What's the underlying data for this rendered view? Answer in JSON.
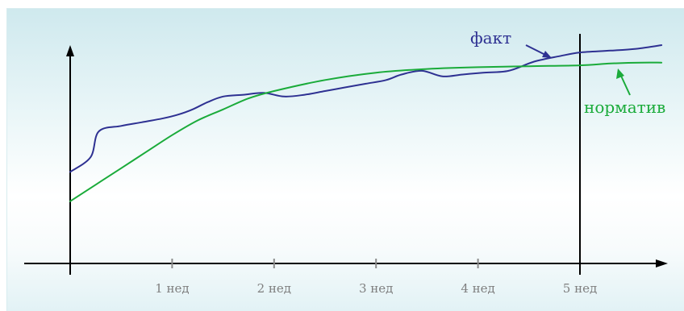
{
  "chart_data": {
    "type": "line",
    "title": "",
    "xlabel": "",
    "ylabel": "",
    "x_unit_label": "нед",
    "xlim": [
      0,
      5.8
    ],
    "ylim": [
      0,
      1
    ],
    "grid": false,
    "legend": "inline labels with arrows",
    "x_ticks": [
      {
        "value": 1,
        "label": "1 нед"
      },
      {
        "value": 2,
        "label": "2 нед"
      },
      {
        "value": 3,
        "label": "3 нед"
      },
      {
        "value": 4,
        "label": "4 нед"
      },
      {
        "value": 5,
        "label": "5 нед"
      }
    ],
    "markers": [
      {
        "x": 5,
        "type": "vertical-line"
      }
    ],
    "series": [
      {
        "name": "факт",
        "color": "#2e3192",
        "points": [
          [
            0,
            0.31
          ],
          [
            0.2,
            0.39
          ],
          [
            0.28,
            0.53
          ],
          [
            0.5,
            0.56
          ],
          [
            0.7,
            0.58
          ],
          [
            0.9,
            0.6
          ],
          [
            1.05,
            0.62
          ],
          [
            1.2,
            0.65
          ],
          [
            1.35,
            0.69
          ],
          [
            1.5,
            0.72
          ],
          [
            1.7,
            0.73
          ],
          [
            1.9,
            0.74
          ],
          [
            2.1,
            0.72
          ],
          [
            2.3,
            0.73
          ],
          [
            2.5,
            0.75
          ],
          [
            2.7,
            0.77
          ],
          [
            2.9,
            0.79
          ],
          [
            3.1,
            0.81
          ],
          [
            3.25,
            0.84
          ],
          [
            3.45,
            0.86
          ],
          [
            3.65,
            0.83
          ],
          [
            3.85,
            0.84
          ],
          [
            4.05,
            0.85
          ],
          [
            4.3,
            0.86
          ],
          [
            4.55,
            0.91
          ],
          [
            4.8,
            0.94
          ],
          [
            5.0,
            0.96
          ],
          [
            5.3,
            0.97
          ],
          [
            5.55,
            0.98
          ],
          [
            5.8,
            1.0
          ]
        ]
      },
      {
        "name": "норматив",
        "color": "#1aab3a",
        "points": [
          [
            0,
            0.15
          ],
          [
            0.25,
            0.24
          ],
          [
            0.5,
            0.33
          ],
          [
            0.75,
            0.42
          ],
          [
            1.0,
            0.51
          ],
          [
            1.25,
            0.59
          ],
          [
            1.5,
            0.65
          ],
          [
            1.75,
            0.71
          ],
          [
            2.0,
            0.75
          ],
          [
            2.5,
            0.81
          ],
          [
            3.0,
            0.85
          ],
          [
            3.5,
            0.87
          ],
          [
            4.0,
            0.88
          ],
          [
            4.5,
            0.885
          ],
          [
            5.0,
            0.89
          ],
          [
            5.3,
            0.9
          ],
          [
            5.6,
            0.905
          ],
          [
            5.8,
            0.905
          ]
        ]
      }
    ]
  }
}
